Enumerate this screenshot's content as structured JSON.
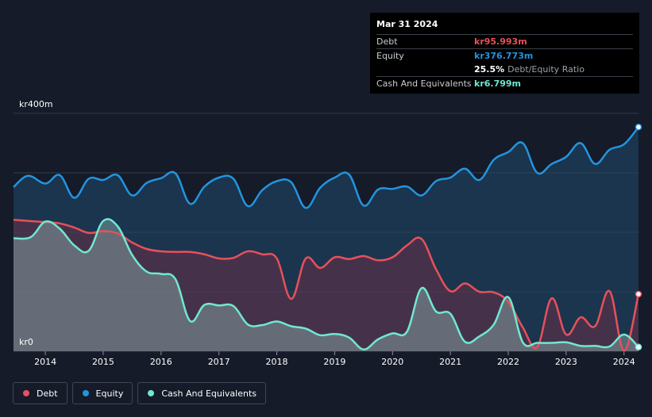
{
  "colors": {
    "debt": "#e8505b",
    "equity": "#2394df",
    "cash": "#6fe8d1"
  },
  "tooltip": {
    "date": "Mar 31 2024",
    "debt_label": "Debt",
    "debt_value": "kr95.993m",
    "equity_label": "Equity",
    "equity_value": "kr376.773m",
    "ratio_value": "25.5%",
    "ratio_label": "Debt/Equity Ratio",
    "cash_label": "Cash And Equivalents",
    "cash_value": "kr6.799m"
  },
  "legend": {
    "debt_label": "Debt",
    "equity_label": "Equity",
    "cash_label": "Cash And Equivalents"
  },
  "chart_data": {
    "type": "area",
    "title": "",
    "xlabel": "",
    "ylabel": "",
    "ylim": [
      0,
      400
    ],
    "xlim": [
      2013.45,
      2024.25
    ],
    "y_top_label": "kr400m",
    "y_bottom_label": "kr0",
    "x_ticks": [
      "2014",
      "2015",
      "2016",
      "2017",
      "2018",
      "2019",
      "2020",
      "2021",
      "2022",
      "2023",
      "2024"
    ],
    "series": [
      {
        "name": "Equity",
        "x": [
          2013.45,
          2013.7,
          2014.0,
          2014.25,
          2014.5,
          2014.75,
          2015.0,
          2015.25,
          2015.5,
          2015.75,
          2016.0,
          2016.25,
          2016.5,
          2016.75,
          2017.0,
          2017.25,
          2017.5,
          2017.75,
          2018.0,
          2018.25,
          2018.5,
          2018.75,
          2019.0,
          2019.25,
          2019.5,
          2019.75,
          2020.0,
          2020.25,
          2020.5,
          2020.75,
          2021.0,
          2021.25,
          2021.5,
          2021.75,
          2022.0,
          2022.25,
          2022.5,
          2022.75,
          2023.0,
          2023.25,
          2023.5,
          2023.75,
          2024.0,
          2024.25
        ],
        "values": [
          276,
          295,
          282,
          296,
          258,
          290,
          288,
          296,
          262,
          283,
          291,
          299,
          248,
          277,
          292,
          290,
          244,
          271,
          286,
          284,
          241,
          275,
          292,
          297,
          245,
          272,
          273,
          277,
          262,
          286,
          292,
          307,
          288,
          322,
          335,
          350,
          300,
          315,
          327,
          350,
          315,
          339,
          348,
          377
        ]
      },
      {
        "name": "Debt",
        "x": [
          2013.45,
          2014.0,
          2014.25,
          2014.5,
          2014.75,
          2015.0,
          2015.25,
          2015.5,
          2015.75,
          2016.0,
          2016.25,
          2016.5,
          2016.75,
          2017.0,
          2017.25,
          2017.5,
          2017.75,
          2018.0,
          2018.25,
          2018.5,
          2018.75,
          2019.0,
          2019.25,
          2019.5,
          2019.75,
          2020.0,
          2020.25,
          2020.5,
          2020.75,
          2021.0,
          2021.25,
          2021.5,
          2021.75,
          2022.0,
          2022.25,
          2022.5,
          2022.75,
          2023.0,
          2023.25,
          2023.5,
          2023.75,
          2024.0,
          2024.25
        ],
        "values": [
          221,
          217,
          215,
          208,
          199,
          202,
          198,
          183,
          172,
          168,
          167,
          167,
          163,
          156,
          157,
          168,
          163,
          156,
          88,
          156,
          140,
          158,
          155,
          160,
          153,
          158,
          178,
          189,
          138,
          101,
          114,
          100,
          99,
          83,
          40,
          7,
          89,
          28,
          57,
          42,
          101,
          1,
          96
        ]
      },
      {
        "name": "Cash And Equivalents",
        "x": [
          2013.45,
          2013.75,
          2014.0,
          2014.25,
          2014.5,
          2014.75,
          2015.0,
          2015.25,
          2015.5,
          2015.75,
          2016.0,
          2016.25,
          2016.5,
          2016.75,
          2017.0,
          2017.25,
          2017.5,
          2017.75,
          2018.0,
          2018.25,
          2018.5,
          2018.75,
          2019.0,
          2019.25,
          2019.5,
          2019.75,
          2020.0,
          2020.25,
          2020.5,
          2020.75,
          2021.0,
          2021.25,
          2021.5,
          2021.75,
          2022.0,
          2022.25,
          2022.5,
          2022.75,
          2023.0,
          2023.25,
          2023.5,
          2023.75,
          2024.0,
          2024.25
        ],
        "values": [
          190,
          192,
          218,
          206,
          178,
          169,
          219,
          210,
          162,
          134,
          130,
          121,
          51,
          78,
          77,
          76,
          45,
          44,
          50,
          42,
          38,
          27,
          29,
          23,
          3,
          20,
          30,
          33,
          106,
          67,
          63,
          16,
          25,
          45,
          91,
          15,
          14,
          14,
          15,
          9,
          9,
          8,
          28,
          7
        ]
      }
    ]
  }
}
